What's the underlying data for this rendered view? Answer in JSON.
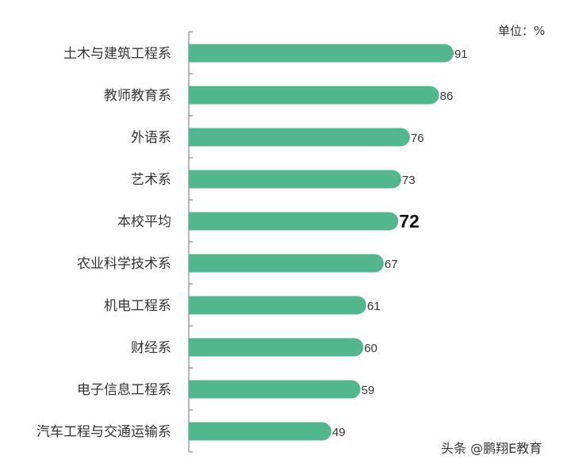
{
  "chart_data": {
    "type": "bar",
    "orientation": "horizontal",
    "categories": [
      "土木与建筑工程系",
      "教师教育系",
      "外语系",
      "艺术系",
      "本校平均",
      "农业科学技术系",
      "机电工程系",
      "财经系",
      "电子信息工程系",
      "汽车工程与交通运输系"
    ],
    "values": [
      91,
      86,
      76,
      73,
      72,
      67,
      61,
      60,
      59,
      49
    ],
    "highlight_category": "本校平均",
    "unit_label": "单位：%",
    "xlim": [
      0,
      100
    ],
    "grid": false,
    "bar_color": "#52b68f"
  },
  "watermark": "头条 @鹏翔E教育"
}
